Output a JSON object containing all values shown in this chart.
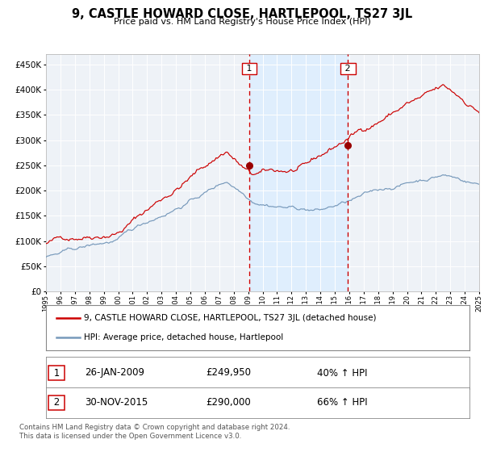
{
  "title": "9, CASTLE HOWARD CLOSE, HARTLEPOOL, TS27 3JL",
  "subtitle": "Price paid vs. HM Land Registry's House Price Index (HPI)",
  "legend_line1": "9, CASTLE HOWARD CLOSE, HARTLEPOOL, TS27 3JL (detached house)",
  "legend_line2": "HPI: Average price, detached house, Hartlepool",
  "transaction1_date": "26-JAN-2009",
  "transaction1_price": "£249,950",
  "transaction1_hpi": "40% ↑ HPI",
  "transaction2_date": "30-NOV-2015",
  "transaction2_price": "£290,000",
  "transaction2_hpi": "66% ↑ HPI",
  "footer": "Contains HM Land Registry data © Crown copyright and database right 2024.\nThis data is licensed under the Open Government Licence v3.0.",
  "red_color": "#cc0000",
  "blue_color": "#7799bb",
  "marker_color": "#990000",
  "shade_color": "#ddeeff",
  "ylim": [
    0,
    470000
  ],
  "yticks": [
    0,
    50000,
    100000,
    150000,
    200000,
    250000,
    300000,
    350000,
    400000,
    450000
  ],
  "t1_year": 2009.07,
  "t2_year": 2015.92,
  "t1_price": 249950,
  "t2_price": 290000,
  "background_color": "#ffffff"
}
